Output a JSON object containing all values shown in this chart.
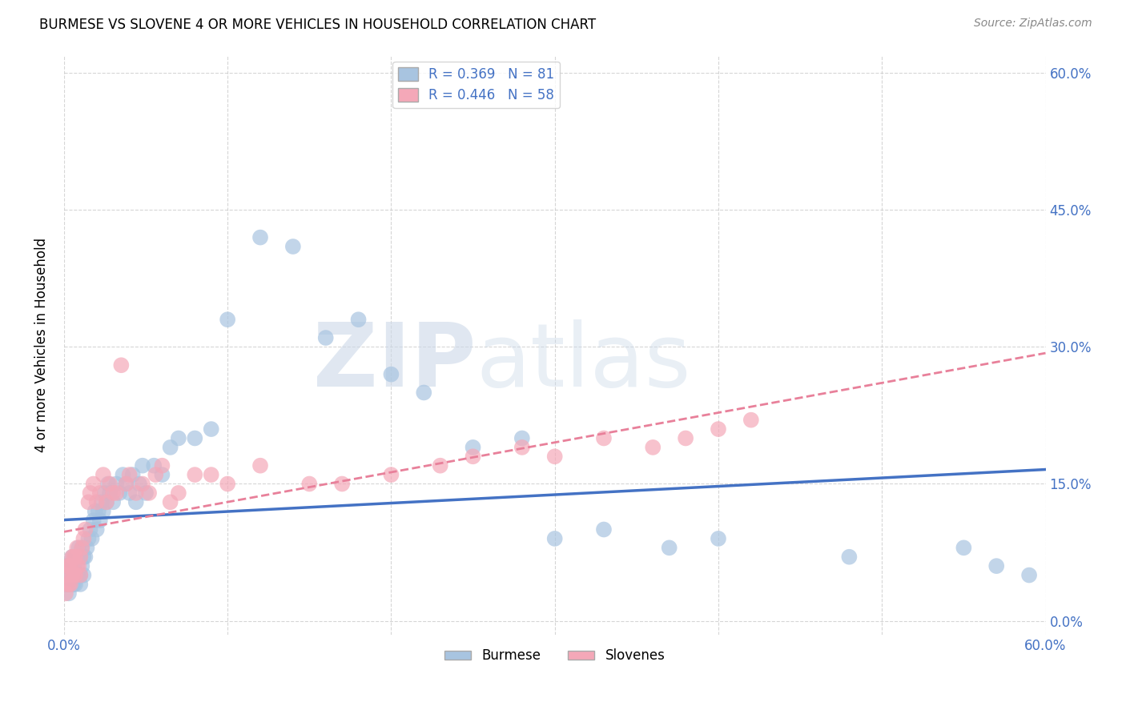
{
  "title": "BURMESE VS SLOVENE 4 OR MORE VEHICLES IN HOUSEHOLD CORRELATION CHART",
  "source": "Source: ZipAtlas.com",
  "ylabel_label": "4 or more Vehicles in Household",
  "R_burmese": 0.369,
  "N_burmese": 81,
  "R_slovene": 0.446,
  "N_slovene": 58,
  "burmese_color": "#a8c4e0",
  "slovene_color": "#f4a8b8",
  "burmese_line_color": "#4472c4",
  "slovene_line_color": "#e8809a",
  "xmin": 0.0,
  "xmax": 0.6,
  "ymin": -0.015,
  "ymax": 0.62,
  "x_ticks": [
    0.0,
    0.1,
    0.2,
    0.3,
    0.4,
    0.5,
    0.6
  ],
  "y_ticks": [
    0.0,
    0.15,
    0.3,
    0.45,
    0.6
  ],
  "burmese_x": [
    0.001,
    0.001,
    0.001,
    0.002,
    0.002,
    0.002,
    0.003,
    0.003,
    0.003,
    0.004,
    0.004,
    0.004,
    0.005,
    0.005,
    0.005,
    0.006,
    0.006,
    0.007,
    0.007,
    0.007,
    0.008,
    0.008,
    0.009,
    0.009,
    0.01,
    0.01,
    0.01,
    0.011,
    0.011,
    0.012,
    0.012,
    0.013,
    0.014,
    0.015,
    0.016,
    0.017,
    0.018,
    0.019,
    0.02,
    0.021,
    0.022,
    0.023,
    0.024,
    0.025,
    0.026,
    0.027,
    0.028,
    0.03,
    0.032,
    0.034,
    0.036,
    0.038,
    0.04,
    0.042,
    0.044,
    0.046,
    0.048,
    0.05,
    0.055,
    0.06,
    0.065,
    0.07,
    0.08,
    0.09,
    0.1,
    0.12,
    0.14,
    0.16,
    0.18,
    0.2,
    0.22,
    0.25,
    0.28,
    0.3,
    0.33,
    0.37,
    0.4,
    0.48,
    0.55,
    0.57,
    0.59
  ],
  "burmese_y": [
    0.04,
    0.05,
    0.06,
    0.04,
    0.05,
    0.06,
    0.03,
    0.05,
    0.06,
    0.04,
    0.05,
    0.06,
    0.04,
    0.05,
    0.07,
    0.04,
    0.06,
    0.04,
    0.05,
    0.07,
    0.05,
    0.07,
    0.05,
    0.08,
    0.04,
    0.05,
    0.07,
    0.06,
    0.08,
    0.05,
    0.07,
    0.07,
    0.08,
    0.09,
    0.1,
    0.09,
    0.11,
    0.12,
    0.1,
    0.12,
    0.11,
    0.13,
    0.12,
    0.14,
    0.13,
    0.15,
    0.14,
    0.13,
    0.15,
    0.14,
    0.16,
    0.15,
    0.14,
    0.16,
    0.13,
    0.15,
    0.17,
    0.14,
    0.17,
    0.16,
    0.19,
    0.2,
    0.2,
    0.21,
    0.33,
    0.42,
    0.41,
    0.31,
    0.33,
    0.27,
    0.25,
    0.19,
    0.2,
    0.09,
    0.1,
    0.08,
    0.09,
    0.07,
    0.08,
    0.06,
    0.05
  ],
  "slovene_x": [
    0.001,
    0.001,
    0.002,
    0.002,
    0.003,
    0.003,
    0.004,
    0.004,
    0.005,
    0.005,
    0.006,
    0.006,
    0.007,
    0.007,
    0.008,
    0.008,
    0.009,
    0.01,
    0.01,
    0.011,
    0.012,
    0.013,
    0.015,
    0.016,
    0.018,
    0.02,
    0.022,
    0.024,
    0.026,
    0.028,
    0.03,
    0.032,
    0.035,
    0.038,
    0.04,
    0.044,
    0.048,
    0.052,
    0.056,
    0.06,
    0.065,
    0.07,
    0.08,
    0.09,
    0.1,
    0.12,
    0.15,
    0.17,
    0.2,
    0.23,
    0.25,
    0.28,
    0.3,
    0.33,
    0.36,
    0.38,
    0.4,
    0.42
  ],
  "slovene_y": [
    0.03,
    0.05,
    0.04,
    0.06,
    0.04,
    0.06,
    0.04,
    0.06,
    0.05,
    0.07,
    0.05,
    0.07,
    0.05,
    0.07,
    0.06,
    0.08,
    0.06,
    0.05,
    0.07,
    0.08,
    0.09,
    0.1,
    0.13,
    0.14,
    0.15,
    0.13,
    0.14,
    0.16,
    0.13,
    0.15,
    0.14,
    0.14,
    0.28,
    0.15,
    0.16,
    0.14,
    0.15,
    0.14,
    0.16,
    0.17,
    0.13,
    0.14,
    0.16,
    0.16,
    0.15,
    0.17,
    0.15,
    0.15,
    0.16,
    0.17,
    0.18,
    0.19,
    0.18,
    0.2,
    0.19,
    0.2,
    0.21,
    0.22
  ]
}
